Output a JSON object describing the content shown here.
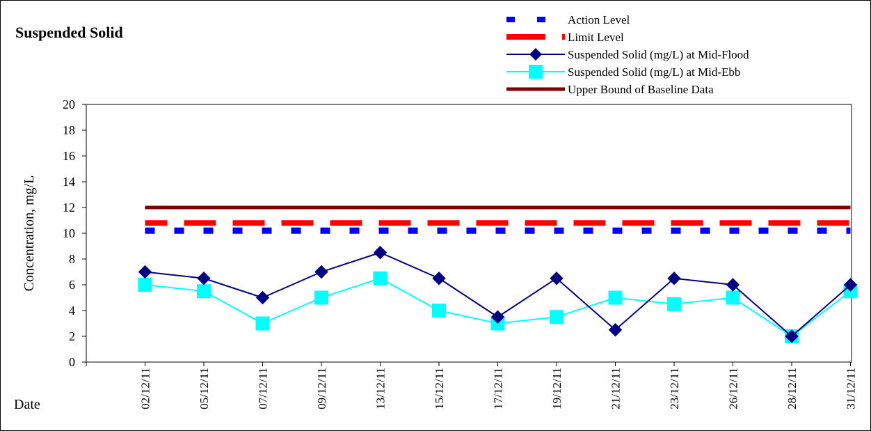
{
  "chart_data": {
    "type": "line",
    "title": "Suspended Solid",
    "xlabel": "Date",
    "ylabel": "Concentration, mg/L",
    "ylim": [
      0,
      20
    ],
    "yticks": [
      0,
      2,
      4,
      6,
      8,
      10,
      12,
      14,
      16,
      18,
      20
    ],
    "grid": false,
    "legend_position": "top-right",
    "categories": [
      "02/12/11",
      "05/12/11",
      "07/12/11",
      "09/12/11",
      "13/12/11",
      "15/12/11",
      "17/12/11",
      "19/12/11",
      "21/12/11",
      "23/12/11",
      "26/12/11",
      "28/12/11",
      "31/12/11"
    ],
    "series": [
      {
        "name": "Action Level",
        "style": "dashed",
        "color": "#0000ff",
        "values": [
          10.2,
          10.2,
          10.2,
          10.2,
          10.2,
          10.2,
          10.2,
          10.2,
          10.2,
          10.2,
          10.2,
          10.2,
          10.2
        ]
      },
      {
        "name": "Limit Level",
        "style": "dashed",
        "color": "#ff0000",
        "values": [
          10.8,
          10.8,
          10.8,
          10.8,
          10.8,
          10.8,
          10.8,
          10.8,
          10.8,
          10.8,
          10.8,
          10.8,
          10.8
        ]
      },
      {
        "name": "Suspended Solid (mg/L) at Mid-Flood",
        "style": "line-diamond",
        "color": "#000080",
        "values": [
          7,
          6.5,
          5,
          7,
          8.5,
          6.5,
          3.5,
          6.5,
          2.5,
          6.5,
          6,
          2,
          6
        ]
      },
      {
        "name": "Suspended Solid (mg/L) at Mid-Ebb",
        "style": "line-square",
        "color": "#00ffff",
        "values": [
          6,
          5.5,
          3,
          5,
          6.5,
          4,
          3,
          3.5,
          5,
          4.5,
          5,
          2,
          5.5
        ]
      },
      {
        "name": "Upper Bound of Baseline Data",
        "style": "solid",
        "color": "#800000",
        "values": [
          12,
          12,
          12,
          12,
          12,
          12,
          12,
          12,
          12,
          12,
          12,
          12,
          12
        ]
      }
    ]
  }
}
